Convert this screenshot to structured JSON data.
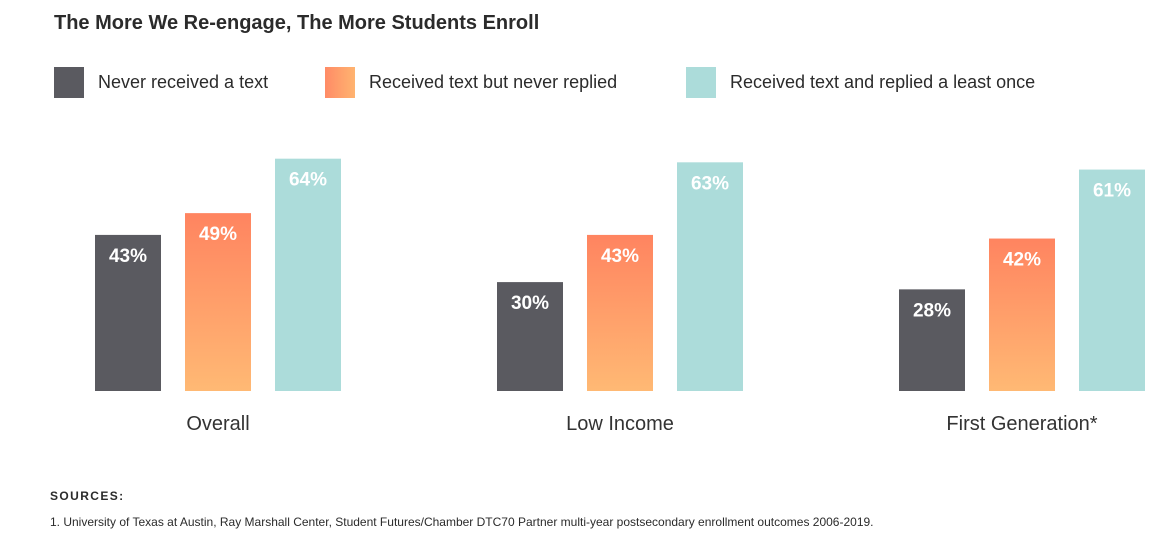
{
  "chart_data": {
    "type": "bar",
    "title": "The More We Re-engage, The More Students Enroll",
    "categories": [
      "Overall",
      "Low Income",
      "First Generation*"
    ],
    "series": [
      {
        "name": "Never received a text",
        "values": [
          43,
          30,
          28
        ],
        "labels": [
          "43%",
          "30%",
          "28%"
        ],
        "color": "#5a5a60"
      },
      {
        "name": "Received text but never replied",
        "values": [
          49,
          43,
          42
        ],
        "labels": [
          "49%",
          "43%",
          "42%"
        ],
        "color": "#ff8b66"
      },
      {
        "name": "Received text and replied a least once",
        "values": [
          64,
          63,
          61
        ],
        "labels": [
          "64%",
          "63%",
          "61%"
        ],
        "color": "#acdcda"
      }
    ],
    "ylim": [
      0,
      100
    ],
    "grid": false,
    "legend": "top-left"
  },
  "sources": {
    "heading": "SOURCES:",
    "note": "1. University of Texas at Austin, Ray Marshall Center, Student Futures/Chamber DTC70 Partner multi-year postsecondary enrollment outcomes 2006-2019."
  }
}
